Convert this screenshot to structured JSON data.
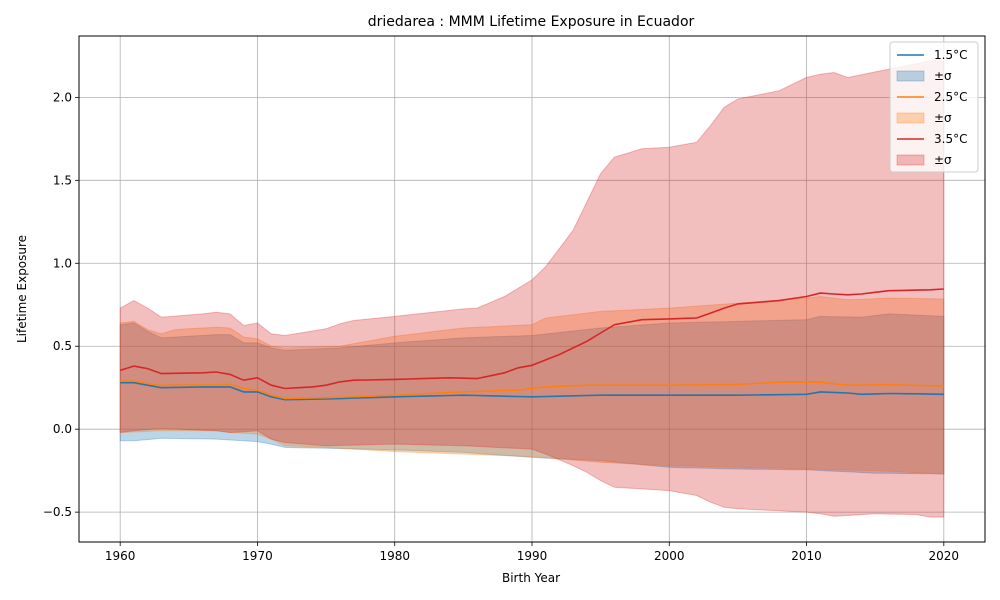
{
  "chart_data": {
    "type": "line",
    "title": "driedarea : MMM Lifetime Exposure in Ecuador",
    "xlabel": "Birth Year",
    "ylabel": "Lifetime Exposure",
    "xlim": [
      1957,
      2023
    ],
    "ylim": [
      -0.68,
      2.37
    ],
    "xticks": [
      1960,
      1970,
      1980,
      1990,
      2000,
      2010,
      2020
    ],
    "yticks": [
      -0.5,
      0.0,
      0.5,
      1.0,
      1.5,
      2.0
    ],
    "ytick_labels": [
      "−0.5",
      "0.0",
      "0.5",
      "1.0",
      "1.5",
      "2.0"
    ],
    "grid": true,
    "legend_position": "top-right",
    "band_label": "±σ",
    "x_start": 1960,
    "x_end": 2020,
    "series": [
      {
        "name": "1.5°C",
        "color": "#1f77b4",
        "mean_pts": [
          [
            1960,
            0.28
          ],
          [
            1961,
            0.28
          ],
          [
            1963,
            0.25
          ],
          [
            1966,
            0.255
          ],
          [
            1968,
            0.255
          ],
          [
            1969,
            0.225
          ],
          [
            1970,
            0.225
          ],
          [
            1971,
            0.195
          ],
          [
            1972,
            0.178
          ],
          [
            1975,
            0.182
          ],
          [
            1980,
            0.195
          ],
          [
            1985,
            0.205
          ],
          [
            1990,
            0.195
          ],
          [
            1995,
            0.205
          ],
          [
            2000,
            0.205
          ],
          [
            2005,
            0.205
          ],
          [
            2010,
            0.21
          ],
          [
            2011,
            0.225
          ],
          [
            2013,
            0.218
          ],
          [
            2014,
            0.21
          ],
          [
            2016,
            0.215
          ],
          [
            2018,
            0.213
          ],
          [
            2020,
            0.21
          ]
        ],
        "upper_pts": [
          [
            1960,
            0.63
          ],
          [
            1961,
            0.64
          ],
          [
            1962,
            0.59
          ],
          [
            1963,
            0.55
          ],
          [
            1967,
            0.57
          ],
          [
            1968,
            0.57
          ],
          [
            1969,
            0.52
          ],
          [
            1970,
            0.52
          ],
          [
            1971,
            0.49
          ],
          [
            1972,
            0.475
          ],
          [
            1976,
            0.49
          ],
          [
            1980,
            0.52
          ],
          [
            1985,
            0.55
          ],
          [
            1990,
            0.565
          ],
          [
            1995,
            0.61
          ],
          [
            2000,
            0.64
          ],
          [
            2005,
            0.65
          ],
          [
            2010,
            0.66
          ],
          [
            2011,
            0.68
          ],
          [
            2014,
            0.675
          ],
          [
            2016,
            0.695
          ],
          [
            2020,
            0.68
          ]
        ],
        "lower_pts": [
          [
            1960,
            -0.07
          ],
          [
            1961,
            -0.07
          ],
          [
            1963,
            -0.055
          ],
          [
            1967,
            -0.06
          ],
          [
            1968,
            -0.065
          ],
          [
            1970,
            -0.075
          ],
          [
            1971,
            -0.09
          ],
          [
            1972,
            -0.11
          ],
          [
            1975,
            -0.115
          ],
          [
            1980,
            -0.125
          ],
          [
            1985,
            -0.14
          ],
          [
            1990,
            -0.17
          ],
          [
            1995,
            -0.19
          ],
          [
            2000,
            -0.23
          ],
          [
            2005,
            -0.24
          ],
          [
            2010,
            -0.245
          ],
          [
            2015,
            -0.265
          ],
          [
            2020,
            -0.27
          ]
        ]
      },
      {
        "name": "2.5°C",
        "color": "#ff7f0e",
        "mean_pts": [
          [
            1960,
            0.29
          ],
          [
            1961,
            0.29
          ],
          [
            1962,
            0.275
          ],
          [
            1963,
            0.265
          ],
          [
            1968,
            0.27
          ],
          [
            1969,
            0.245
          ],
          [
            1970,
            0.235
          ],
          [
            1971,
            0.205
          ],
          [
            1972,
            0.185
          ],
          [
            1975,
            0.19
          ],
          [
            1980,
            0.205
          ],
          [
            1985,
            0.225
          ],
          [
            1989,
            0.235
          ],
          [
            1991,
            0.255
          ],
          [
            1994,
            0.265
          ],
          [
            2000,
            0.265
          ],
          [
            2005,
            0.27
          ],
          [
            2008,
            0.283
          ],
          [
            2011,
            0.283
          ],
          [
            2013,
            0.265
          ],
          [
            2016,
            0.268
          ],
          [
            2020,
            0.26
          ]
        ],
        "upper_pts": [
          [
            1960,
            0.64
          ],
          [
            1961,
            0.65
          ],
          [
            1962,
            0.6
          ],
          [
            1963,
            0.575
          ],
          [
            1964,
            0.6
          ],
          [
            1967,
            0.615
          ],
          [
            1968,
            0.61
          ],
          [
            1969,
            0.555
          ],
          [
            1970,
            0.545
          ],
          [
            1971,
            0.5
          ],
          [
            1972,
            0.49
          ],
          [
            1976,
            0.5
          ],
          [
            1980,
            0.56
          ],
          [
            1985,
            0.61
          ],
          [
            1990,
            0.63
          ],
          [
            1991,
            0.67
          ],
          [
            1995,
            0.71
          ],
          [
            2000,
            0.73
          ],
          [
            2005,
            0.76
          ],
          [
            2010,
            0.79
          ],
          [
            2011,
            0.8
          ],
          [
            2013,
            0.78
          ],
          [
            2016,
            0.79
          ],
          [
            2020,
            0.785
          ]
        ],
        "lower_pts": [
          [
            1960,
            -0.02
          ],
          [
            1963,
            -0.01
          ],
          [
            1967,
            -0.01
          ],
          [
            1968,
            -0.02
          ],
          [
            1970,
            -0.03
          ],
          [
            1971,
            -0.06
          ],
          [
            1972,
            -0.1
          ],
          [
            1975,
            -0.11
          ],
          [
            1980,
            -0.135
          ],
          [
            1985,
            -0.15
          ],
          [
            1990,
            -0.165
          ],
          [
            1995,
            -0.2
          ],
          [
            2000,
            -0.22
          ],
          [
            2005,
            -0.23
          ],
          [
            2010,
            -0.24
          ],
          [
            2015,
            -0.25
          ],
          [
            2020,
            -0.27
          ]
        ]
      },
      {
        "name": "3.5°C",
        "color": "#d62728",
        "mean_pts": [
          [
            1960,
            0.355
          ],
          [
            1961,
            0.38
          ],
          [
            1962,
            0.365
          ],
          [
            1963,
            0.335
          ],
          [
            1966,
            0.34
          ],
          [
            1967,
            0.345
          ],
          [
            1968,
            0.33
          ],
          [
            1969,
            0.295
          ],
          [
            1970,
            0.31
          ],
          [
            1971,
            0.265
          ],
          [
            1972,
            0.245
          ],
          [
            1974,
            0.255
          ],
          [
            1975,
            0.265
          ],
          [
            1976,
            0.285
          ],
          [
            1977,
            0.295
          ],
          [
            1980,
            0.3
          ],
          [
            1984,
            0.31
          ],
          [
            1986,
            0.305
          ],
          [
            1988,
            0.34
          ],
          [
            1989,
            0.37
          ],
          [
            1990,
            0.385
          ],
          [
            1992,
            0.45
          ],
          [
            1994,
            0.53
          ],
          [
            1996,
            0.63
          ],
          [
            1998,
            0.66
          ],
          [
            2000,
            0.665
          ],
          [
            2002,
            0.67
          ],
          [
            2004,
            0.73
          ],
          [
            2005,
            0.755
          ],
          [
            2008,
            0.775
          ],
          [
            2010,
            0.8
          ],
          [
            2011,
            0.82
          ],
          [
            2013,
            0.81
          ],
          [
            2014,
            0.815
          ],
          [
            2016,
            0.835
          ],
          [
            2019,
            0.84
          ],
          [
            2020,
            0.845
          ]
        ],
        "upper_pts": [
          [
            1960,
            0.73
          ],
          [
            1961,
            0.775
          ],
          [
            1962,
            0.73
          ],
          [
            1963,
            0.675
          ],
          [
            1966,
            0.695
          ],
          [
            1967,
            0.705
          ],
          [
            1968,
            0.695
          ],
          [
            1969,
            0.625
          ],
          [
            1970,
            0.64
          ],
          [
            1971,
            0.575
          ],
          [
            1972,
            0.565
          ],
          [
            1975,
            0.605
          ],
          [
            1976,
            0.635
          ],
          [
            1977,
            0.655
          ],
          [
            1980,
            0.68
          ],
          [
            1985,
            0.725
          ],
          [
            1986,
            0.73
          ],
          [
            1988,
            0.8
          ],
          [
            1989,
            0.85
          ],
          [
            1990,
            0.9
          ],
          [
            1991,
            0.98
          ],
          [
            1993,
            1.2
          ],
          [
            1995,
            1.54
          ],
          [
            1996,
            1.64
          ],
          [
            1998,
            1.69
          ],
          [
            2000,
            1.7
          ],
          [
            2002,
            1.73
          ],
          [
            2003,
            1.83
          ],
          [
            2004,
            1.94
          ],
          [
            2005,
            1.99
          ],
          [
            2008,
            2.04
          ],
          [
            2010,
            2.12
          ],
          [
            2011,
            2.14
          ],
          [
            2012,
            2.15
          ],
          [
            2013,
            2.12
          ],
          [
            2016,
            2.17
          ],
          [
            2019,
            2.22
          ],
          [
            2020,
            2.22
          ]
        ],
        "lower_pts": [
          [
            1960,
            -0.02
          ],
          [
            1961,
            -0.01
          ],
          [
            1963,
            0.005
          ],
          [
            1967,
            -0.01
          ],
          [
            1968,
            -0.02
          ],
          [
            1970,
            -0.01
          ],
          [
            1971,
            -0.06
          ],
          [
            1972,
            -0.08
          ],
          [
            1975,
            -0.1
          ],
          [
            1980,
            -0.09
          ],
          [
            1985,
            -0.1
          ],
          [
            1990,
            -0.12
          ],
          [
            1991,
            -0.15
          ],
          [
            1993,
            -0.22
          ],
          [
            1994,
            -0.26
          ],
          [
            1995,
            -0.31
          ],
          [
            1996,
            -0.35
          ],
          [
            1998,
            -0.36
          ],
          [
            2000,
            -0.37
          ],
          [
            2002,
            -0.4
          ],
          [
            2003,
            -0.44
          ],
          [
            2004,
            -0.47
          ],
          [
            2005,
            -0.48
          ],
          [
            2010,
            -0.5
          ],
          [
            2011,
            -0.51
          ],
          [
            2012,
            -0.525
          ],
          [
            2015,
            -0.51
          ],
          [
            2018,
            -0.515
          ],
          [
            2019,
            -0.53
          ],
          [
            2020,
            -0.53
          ]
        ]
      }
    ]
  }
}
